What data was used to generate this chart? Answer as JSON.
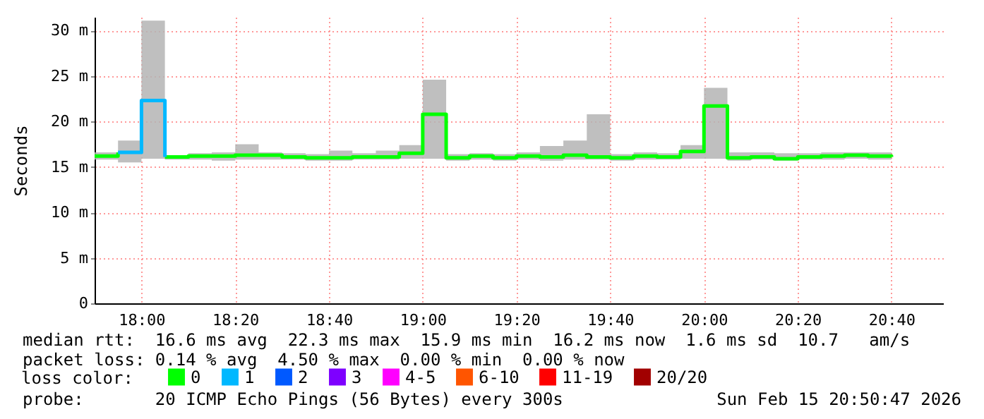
{
  "chart_data": {
    "type": "step",
    "ylabel": "Seconds",
    "legend_title": "loss color:",
    "legend": "bottom",
    "grid": true,
    "x": [
      "2026-02-15T17:50",
      "2026-02-15T17:55",
      "2026-02-15T18:00",
      "2026-02-15T18:05",
      "2026-02-15T18:10",
      "2026-02-15T18:15",
      "2026-02-15T18:20",
      "2026-02-15T18:25",
      "2026-02-15T18:30",
      "2026-02-15T18:35",
      "2026-02-15T18:40",
      "2026-02-15T18:45",
      "2026-02-15T18:50",
      "2026-02-15T18:55",
      "2026-02-15T19:00",
      "2026-02-15T19:05",
      "2026-02-15T19:10",
      "2026-02-15T19:15",
      "2026-02-15T19:20",
      "2026-02-15T19:25",
      "2026-02-15T19:30",
      "2026-02-15T19:35",
      "2026-02-15T19:40",
      "2026-02-15T19:45",
      "2026-02-15T19:50",
      "2026-02-15T19:55",
      "2026-02-15T20:00",
      "2026-02-15T20:05",
      "2026-02-15T20:10",
      "2026-02-15T20:15",
      "2026-02-15T20:20",
      "2026-02-15T20:25",
      "2026-02-15T20:30",
      "2026-02-15T20:35",
      "2026-02-15T20:40"
    ],
    "series": [
      {
        "name": "0",
        "color": "#00ff00",
        "values": [
          16.2,
          16.6,
          null,
          16.1,
          16.2,
          16.2,
          16.3,
          16.3,
          16.1,
          16.0,
          16.0,
          16.1,
          16.1,
          16.5,
          20.8,
          16.0,
          16.2,
          16.0,
          16.2,
          16.1,
          16.3,
          16.1,
          16.0,
          16.2,
          16.1,
          16.7,
          21.7,
          16.0,
          16.1,
          15.9,
          16.1,
          16.2,
          16.3,
          16.2,
          16.1
        ],
        "lower": [
          15.8,
          15.5,
          15.9,
          15.8,
          15.8,
          15.7,
          15.8,
          15.8,
          15.8,
          15.7,
          15.7,
          15.8,
          15.8,
          15.9,
          15.9,
          15.7,
          15.8,
          15.7,
          15.8,
          15.7,
          15.8,
          15.8,
          15.7,
          15.8,
          15.8,
          15.9,
          15.9,
          15.7,
          15.8,
          15.7,
          15.8,
          15.8,
          15.9,
          15.8,
          15.7
        ],
        "upper": [
          16.6,
          17.9,
          31.1,
          16.3,
          16.5,
          16.6,
          17.5,
          16.6,
          16.5,
          16.4,
          16.8,
          16.5,
          16.8,
          17.4,
          24.6,
          16.4,
          16.5,
          16.4,
          16.6,
          17.3,
          17.9,
          20.8,
          16.4,
          16.6,
          16.5,
          17.4,
          23.7,
          16.6,
          16.6,
          16.5,
          16.5,
          16.6,
          16.6,
          16.6,
          16.6
        ]
      },
      {
        "name": "1",
        "color": "#00b8ff",
        "x": [
          "2026-02-15T17:55",
          "2026-02-15T18:00",
          "2026-02-15T18:05"
        ],
        "values": [
          16.6,
          22.3,
          16.1
        ]
      },
      {
        "name": "2",
        "color": "#0059ff",
        "values": [
          null,
          null,
          null,
          null,
          null,
          null,
          null,
          null,
          null,
          null,
          null,
          null,
          null,
          null,
          null,
          null,
          null,
          null,
          null,
          null,
          null,
          null,
          null,
          null,
          null,
          null,
          null,
          null,
          null,
          null,
          null,
          null,
          null,
          null,
          null
        ]
      },
      {
        "name": "3",
        "color": "#7e00ff",
        "values": [
          null,
          null,
          null,
          null,
          null,
          null,
          null,
          null,
          null,
          null,
          null,
          null,
          null,
          null,
          null,
          null,
          null,
          null,
          null,
          null,
          null,
          null,
          null,
          null,
          null,
          null,
          null,
          null,
          null,
          null,
          null,
          null,
          null,
          null,
          null
        ]
      },
      {
        "name": "4-5",
        "color": "#ff00ff",
        "values": [
          null,
          null,
          null,
          null,
          null,
          null,
          null,
          null,
          null,
          null,
          null,
          null,
          null,
          null,
          null,
          null,
          null,
          null,
          null,
          null,
          null,
          null,
          null,
          null,
          null,
          null,
          null,
          null,
          null,
          null,
          null,
          null,
          null,
          null,
          null
        ]
      },
      {
        "name": "6-10",
        "color": "#ff5500",
        "values": [
          null,
          null,
          null,
          null,
          null,
          null,
          null,
          null,
          null,
          null,
          null,
          null,
          null,
          null,
          null,
          null,
          null,
          null,
          null,
          null,
          null,
          null,
          null,
          null,
          null,
          null,
          null,
          null,
          null,
          null,
          null,
          null,
          null,
          null,
          null
        ]
      },
      {
        "name": "11-19",
        "color": "#ff0000",
        "values": [
          null,
          null,
          null,
          null,
          null,
          null,
          null,
          null,
          null,
          null,
          null,
          null,
          null,
          null,
          null,
          null,
          null,
          null,
          null,
          null,
          null,
          null,
          null,
          null,
          null,
          null,
          null,
          null,
          null,
          null,
          null,
          null,
          null,
          null,
          null
        ]
      },
      {
        "name": "20/20",
        "color": "#a10000",
        "values": [
          null,
          null,
          null,
          null,
          null,
          null,
          null,
          null,
          null,
          null,
          null,
          null,
          null,
          null,
          null,
          null,
          null,
          null,
          null,
          null,
          null,
          null,
          null,
          null,
          null,
          null,
          null,
          null,
          null,
          null,
          null,
          null,
          null,
          null,
          null
        ]
      }
    ],
    "xlim": [
      "2026-02-15T17:50",
      "2026-02-15T20:51"
    ],
    "xticks": [
      {
        "value": "2026-02-15T18:00",
        "label": "18:00"
      },
      {
        "value": "2026-02-15T18:20",
        "label": "18:20"
      },
      {
        "value": "2026-02-15T18:40",
        "label": "18:40"
      },
      {
        "value": "2026-02-15T19:00",
        "label": "19:00"
      },
      {
        "value": "2026-02-15T19:20",
        "label": "19:20"
      },
      {
        "value": "2026-02-15T19:40",
        "label": "19:40"
      },
      {
        "value": "2026-02-15T20:00",
        "label": "20:00"
      },
      {
        "value": "2026-02-15T20:20",
        "label": "20:20"
      },
      {
        "value": "2026-02-15T20:40",
        "label": "20:40"
      }
    ],
    "ylim": [
      0,
      31.5
    ],
    "yticks": [
      0,
      {
        "value": 5,
        "label": "5 m"
      },
      {
        "value": 10,
        "label": "10 m"
      },
      {
        "value": 15,
        "label": "15 m"
      },
      {
        "value": 20,
        "label": "20 m"
      },
      {
        "value": 25,
        "label": "25 m"
      },
      {
        "value": 30,
        "label": "30 m"
      }
    ],
    "annotations": [
      "median rtt:  16.6 ms avg  22.3 ms max  15.9 ms min  16.2 ms now  1.6 ms sd  10.7   am/s",
      "packet loss: 0.14 % avg  4.50 % max  0.00 % min  0.00 % now",
      "probe:       20 ICMP Echo Pings (56 Bytes) every 300s",
      "Sun Feb 15 20:50:47 2026"
    ]
  }
}
